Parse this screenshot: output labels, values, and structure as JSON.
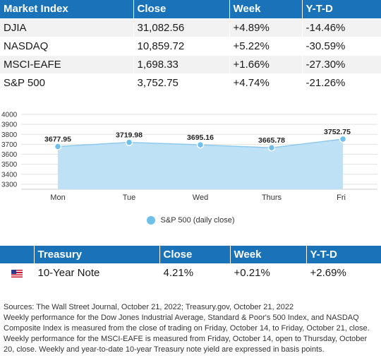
{
  "market_table": {
    "headers": [
      "Market Index",
      "Close",
      "Week",
      "Y-T-D"
    ],
    "rows": [
      [
        "DJIA",
        "31,082.56",
        "+4.89%",
        "-14.46%"
      ],
      [
        "NASDAQ",
        "10,859.72",
        "+5.22%",
        "-30.59%"
      ],
      [
        "MSCI-EAFE",
        "1,698.33",
        "+1.66%",
        "-27.30%"
      ],
      [
        "S&P 500",
        "3,752.75",
        "+4.74%",
        "-21.26%"
      ]
    ]
  },
  "chart_data": {
    "type": "area",
    "categories": [
      "Mon",
      "Tue",
      "Wed",
      "Thurs",
      "Fri"
    ],
    "series": [
      {
        "name": "S&P 500 (daily close)",
        "values": [
          3677.95,
          3719.98,
          3695.16,
          3665.78,
          3752.75
        ],
        "labels": [
          "3677.95",
          "3719.98",
          "3695.16",
          "3665.78",
          "3752.75"
        ]
      }
    ],
    "y_ticks": [
      3300,
      3400,
      3500,
      3600,
      3700,
      3800,
      3900,
      4000
    ],
    "ylim": [
      3250,
      4000
    ],
    "grid": true,
    "legend": "bottom-center",
    "colors": {
      "fill": "#bfe1f6",
      "line": "#8fcaee",
      "marker": "#6fbfec"
    }
  },
  "legend": {
    "label": "S&P 500 (daily close)"
  },
  "treasury_table": {
    "headers": [
      "",
      "Treasury",
      "Close",
      "Week",
      "Y-T-D"
    ],
    "rows": [
      [
        "10-Year Note",
        "4.21%",
        "+0.21%",
        "+2.69%"
      ]
    ],
    "flag_icon": "us-flag-icon"
  },
  "footnote": {
    "lines": [
      "Sources: The Wall Street Journal, October 21, 2022; Treasury.gov, October 21, 2022",
      "Weekly performance for the Dow Jones Industrial Average, Standard & Poor's 500 Index, and NASDAQ Composite Index is measured from the close of trading on Friday, October 14, to Friday, October 21, close. Weekly performance for the MSCI-EAFE is measured from Friday, October 14, open to Thursday, October 20, close. Weekly and year-to-date 10-year Treasury note yield are expressed in basis points."
    ]
  }
}
